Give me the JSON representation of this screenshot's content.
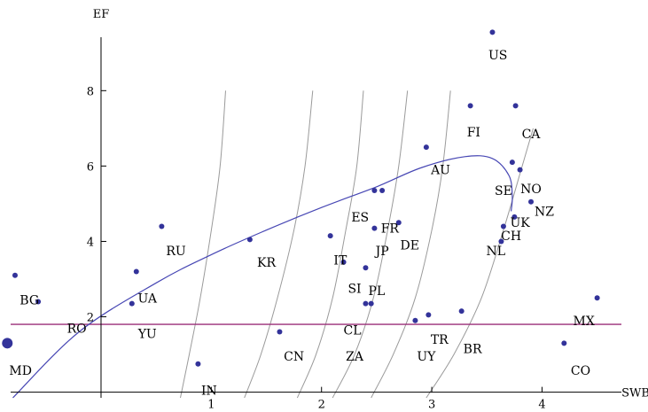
{
  "chart_data": {
    "type": "scatter",
    "xlabel": "SWB",
    "ylabel": "EF",
    "xlim": [
      -0.82,
      4.72
    ],
    "ylim": [
      -0.15,
      9.7
    ],
    "x_ticks": [
      1,
      2,
      3,
      4
    ],
    "y_ticks": [
      2,
      4,
      6,
      8
    ],
    "grid": false,
    "colors": {
      "points": "#33339a",
      "trend": "#4747b4",
      "hline": "#9a2f78",
      "curves": "#9a9a9a",
      "axis": "#000000"
    },
    "points": [
      {
        "label": "US",
        "x": 3.55,
        "y": 9.55,
        "lx": 3.6,
        "ly": 8.95
      },
      {
        "label": "FI",
        "x": 3.35,
        "y": 7.6,
        "lx": 3.38,
        "ly": 6.9
      },
      {
        "label": "CA",
        "x": 3.76,
        "y": 7.6,
        "lx": 3.9,
        "ly": 6.85
      },
      {
        "label": "AU",
        "x": 2.95,
        "y": 6.5,
        "lx": 3.08,
        "ly": 5.9
      },
      {
        "label": "SE",
        "x": 3.73,
        "y": 6.1,
        "lx": 3.65,
        "ly": 5.35
      },
      {
        "label": "NO",
        "x": 3.8,
        "y": 5.9,
        "lx": 3.9,
        "ly": 5.4
      },
      {
        "label": "NZ",
        "x": 3.9,
        "y": 5.05,
        "lx": 4.02,
        "ly": 4.8
      },
      {
        "label": "UK",
        "x": 3.75,
        "y": 4.65,
        "lx": 3.8,
        "ly": 4.5
      },
      {
        "label": "CH",
        "x": 3.65,
        "y": 4.4,
        "lx": 3.72,
        "ly": 4.15
      },
      {
        "label": "NL",
        "x": 3.63,
        "y": 4.0,
        "lx": 3.58,
        "ly": 3.75
      },
      {
        "label": "ES",
        "x": 2.48,
        "y": 5.35,
        "lx": 2.35,
        "ly": 4.65
      },
      {
        "label": "FR",
        "x": 2.55,
        "y": 5.35,
        "lx": 2.62,
        "ly": 4.35
      },
      {
        "label": "JP",
        "x": 2.48,
        "y": 4.35,
        "lx": 2.55,
        "ly": 3.75
      },
      {
        "label": "DE",
        "x": 2.7,
        "y": 4.5,
        "lx": 2.8,
        "ly": 3.9
      },
      {
        "label": "IT",
        "x": 2.08,
        "y": 4.15,
        "lx": 2.17,
        "ly": 3.5
      },
      {
        "label": "KR",
        "x": 1.35,
        "y": 4.05,
        "lx": 1.5,
        "ly": 3.45
      },
      {
        "label": "RU",
        "x": 0.55,
        "y": 4.4,
        "lx": 0.68,
        "ly": 3.75
      },
      {
        "label": "UA",
        "x": 0.32,
        "y": 3.2,
        "lx": 0.42,
        "ly": 2.5
      },
      {
        "label": "BG",
        "x": -0.78,
        "y": 3.1,
        "lx": -0.65,
        "ly": 2.45
      },
      {
        "label": "RO",
        "x": -0.57,
        "y": 2.4,
        "lx": -0.22,
        "ly": 1.7
      },
      {
        "label": "YU",
        "x": 0.28,
        "y": 2.35,
        "lx": 0.42,
        "ly": 1.55
      },
      {
        "label": "MD",
        "x": -0.85,
        "y": 1.3,
        "lx": -0.73,
        "ly": 0.58,
        "large": true
      },
      {
        "label": "SI",
        "x": 2.2,
        "y": 3.45,
        "lx": 2.3,
        "ly": 2.75
      },
      {
        "label": "PL",
        "x": 2.4,
        "y": 3.3,
        "lx": 2.5,
        "ly": 2.7
      },
      {
        "label": "CL",
        "x": 2.4,
        "y": 2.35,
        "lx": 2.28,
        "ly": 1.65
      },
      {
        "label": "ZA",
        "x": 2.45,
        "y": 2.35,
        "lx": 2.3,
        "ly": 0.95
      },
      {
        "label": "CN",
        "x": 1.62,
        "y": 1.6,
        "lx": 1.75,
        "ly": 0.95
      },
      {
        "label": "IN",
        "x": 0.88,
        "y": 0.75,
        "lx": 0.98,
        "ly": 0.05
      },
      {
        "label": "TR",
        "x": 2.97,
        "y": 2.05,
        "lx": 3.07,
        "ly": 1.4
      },
      {
        "label": "UY",
        "x": 2.85,
        "y": 1.9,
        "lx": 2.95,
        "ly": 0.95
      },
      {
        "label": "BR",
        "x": 3.27,
        "y": 2.15,
        "lx": 3.37,
        "ly": 1.15
      },
      {
        "label": "MX",
        "x": 4.5,
        "y": 2.5,
        "lx": 4.38,
        "ly": 1.9
      },
      {
        "label": "CO",
        "x": 4.2,
        "y": 1.3,
        "lx": 4.35,
        "ly": 0.58
      }
    ],
    "hline_y": 1.8,
    "trend_line": [
      [
        -0.8,
        -0.15
      ],
      [
        -0.2,
        1.6
      ],
      [
        0.5,
        2.9
      ],
      [
        1.0,
        3.65
      ],
      [
        1.5,
        4.3
      ],
      [
        2.0,
        4.9
      ],
      [
        2.5,
        5.45
      ],
      [
        2.9,
        5.95
      ],
      [
        3.3,
        6.25
      ],
      [
        3.55,
        6.2
      ],
      [
        3.7,
        5.75
      ],
      [
        3.73,
        5.2
      ],
      [
        3.72,
        4.8
      ]
    ],
    "indifference_curves": [
      [
        [
          0.72,
          -0.15
        ],
        [
          0.8,
          1.0
        ],
        [
          0.9,
          2.5
        ],
        [
          1.0,
          4.3
        ],
        [
          1.08,
          6.0
        ],
        [
          1.13,
          8.0
        ]
      ],
      [
        [
          1.3,
          -0.15
        ],
        [
          1.45,
          1.0
        ],
        [
          1.6,
          2.5
        ],
        [
          1.75,
          4.3
        ],
        [
          1.85,
          6.0
        ],
        [
          1.92,
          8.0
        ]
      ],
      [
        [
          1.78,
          -0.15
        ],
        [
          1.95,
          1.0
        ],
        [
          2.1,
          2.5
        ],
        [
          2.22,
          4.3
        ],
        [
          2.32,
          6.0
        ],
        [
          2.38,
          8.0
        ]
      ],
      [
        [
          2.1,
          -0.15
        ],
        [
          2.3,
          1.0
        ],
        [
          2.47,
          2.5
        ],
        [
          2.6,
          4.3
        ],
        [
          2.7,
          6.0
        ],
        [
          2.78,
          8.0
        ]
      ],
      [
        [
          2.45,
          -0.15
        ],
        [
          2.65,
          1.0
        ],
        [
          2.85,
          2.5
        ],
        [
          3.0,
          4.3
        ],
        [
          3.1,
          6.0
        ],
        [
          3.17,
          8.0
        ]
      ],
      [
        [
          2.95,
          -0.15
        ],
        [
          3.2,
          1.0
        ],
        [
          3.45,
          2.5
        ],
        [
          3.65,
          4.3
        ],
        [
          3.82,
          6.0
        ],
        [
          3.92,
          7.0
        ]
      ]
    ]
  }
}
